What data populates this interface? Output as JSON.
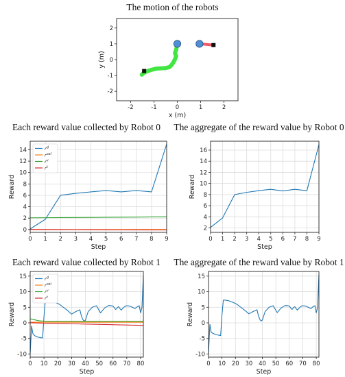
{
  "colors": {
    "r_d": "#1f77b4",
    "r_col": "#ff7f0e",
    "r_v": "#2ca02c",
    "r_t": "#d62728",
    "trail": "#22e022",
    "robot": "#4f8fd6",
    "goal": "#111111",
    "link": "#ee3344"
  },
  "chart_data": [
    {
      "id": "motion",
      "type": "scatter",
      "title": "The motion of the robots",
      "xlabel": "x (m)",
      "ylabel": "y (m)",
      "xlim": [
        -2.6,
        2.6
      ],
      "ylim": [
        -2.6,
        2.6
      ],
      "xticks": [
        -2,
        -1,
        0,
        1,
        2
      ],
      "yticks": [
        -2,
        -1,
        0,
        1,
        2
      ],
      "grid": false,
      "trail": [
        [
          -1.52,
          -0.95
        ],
        [
          -1.42,
          -0.82
        ],
        [
          -1.28,
          -0.73
        ],
        [
          -1.1,
          -0.64
        ],
        [
          -0.9,
          -0.57
        ],
        [
          -0.7,
          -0.55
        ],
        [
          -0.5,
          -0.53
        ],
        [
          -0.35,
          -0.48
        ],
        [
          -0.27,
          -0.38
        ],
        [
          -0.18,
          -0.2
        ],
        [
          -0.1,
          0.02
        ],
        [
          -0.05,
          0.22
        ],
        [
          -0.1,
          0.42
        ],
        [
          -0.05,
          0.62
        ],
        [
          -0.02,
          0.82
        ],
        [
          0.0,
          1.0
        ]
      ],
      "robots": [
        [
          0.0,
          1.0
        ],
        [
          0.95,
          1.0
        ]
      ],
      "goals": [
        [
          -1.42,
          -0.72
        ],
        [
          1.55,
          0.92
        ]
      ],
      "link": [
        [
          0.95,
          1.0
        ],
        [
          1.55,
          0.92
        ]
      ]
    },
    {
      "id": "r0-each",
      "type": "line",
      "title": "Each reward value collected by Robot 0",
      "xlabel": "Step",
      "ylabel": "Reward",
      "xlim": [
        0,
        9
      ],
      "ylim": [
        -0.5,
        15.5
      ],
      "xticks": [
        0,
        1,
        2,
        3,
        4,
        5,
        6,
        7,
        8,
        9
      ],
      "yticks": [
        0,
        2,
        4,
        6,
        8,
        10,
        12,
        14
      ],
      "grid": true,
      "legend": "top-left",
      "x": [
        0,
        1,
        2,
        3,
        4,
        5,
        6,
        7,
        8,
        9
      ],
      "series": [
        {
          "name": "r^d",
          "color": "#1f77b4",
          "values": [
            0.1,
            1.8,
            6.0,
            6.35,
            6.6,
            6.85,
            6.6,
            6.85,
            6.6,
            15.0
          ]
        },
        {
          "name": "r^col",
          "color": "#ff7f0e",
          "values": [
            0,
            0,
            0,
            0,
            0,
            0,
            0,
            0,
            0,
            0
          ]
        },
        {
          "name": "r^v",
          "color": "#2ca02c",
          "values": [
            2.05,
            2.07,
            2.09,
            2.11,
            2.13,
            2.15,
            2.17,
            2.19,
            2.21,
            2.23
          ]
        },
        {
          "name": "r^t",
          "color": "#d62728",
          "values": [
            0.02,
            0.0,
            -0.01,
            -0.02,
            -0.03,
            -0.04,
            -0.05,
            -0.06,
            -0.07,
            -0.08
          ]
        }
      ]
    },
    {
      "id": "r0-agg",
      "type": "line",
      "title": "The aggregate of the reward value by Robot 0",
      "xlabel": "Step",
      "ylabel": "Reward",
      "xlim": [
        0,
        9
      ],
      "ylim": [
        1.2,
        17.6
      ],
      "xticks": [
        0,
        1,
        2,
        3,
        4,
        5,
        6,
        7,
        8,
        9
      ],
      "yticks": [
        2,
        4,
        6,
        8,
        10,
        12,
        14,
        16
      ],
      "grid": true,
      "x": [
        0,
        1,
        2,
        3,
        4,
        5,
        6,
        7,
        8,
        9
      ],
      "series": [
        {
          "name": "",
          "color": "#1f77b4",
          "values": [
            2.1,
            3.8,
            8.0,
            8.4,
            8.7,
            8.95,
            8.65,
            8.95,
            8.7,
            17.0
          ]
        }
      ]
    },
    {
      "id": "r1-each",
      "type": "line",
      "title": "Each reward value collected by Robot 1",
      "xlabel": "Step",
      "ylabel": "Reward",
      "xlim": [
        0,
        82
      ],
      "ylim": [
        -11,
        16.5
      ],
      "xticks": [
        0,
        10,
        20,
        30,
        40,
        50,
        60,
        70,
        80
      ],
      "yticks": [
        -10,
        -5,
        0,
        5,
        10,
        15
      ],
      "grid": true,
      "legend": "top-left",
      "x": [
        0,
        1,
        2,
        3,
        4,
        5,
        6,
        7,
        8,
        9,
        10,
        11,
        12,
        15,
        18,
        21,
        24,
        27,
        30,
        33,
        36,
        37,
        38,
        39,
        40,
        42,
        45,
        48,
        51,
        54,
        57,
        60,
        61,
        62,
        63,
        64,
        65,
        66,
        67,
        68,
        69,
        70,
        72,
        74,
        76,
        78,
        79,
        80,
        81,
        82
      ],
      "series": [
        {
          "name": "r^d",
          "color": "#1f77b4",
          "values": [
            -10,
            -1,
            -3.5,
            -4,
            -4.3,
            -4.5,
            -4.6,
            -4.7,
            -4.8,
            -4.8,
            2,
            7.2,
            7.2,
            7.0,
            6.6,
            6.0,
            5.0,
            4.0,
            2.8,
            3.6,
            4.2,
            2.4,
            1.2,
            0.6,
            0.8,
            3.6,
            5.0,
            5.5,
            3.2,
            4.8,
            5.6,
            5.4,
            4.8,
            4.3,
            4.8,
            5.2,
            4.6,
            4.1,
            4.6,
            5.0,
            5.4,
            5.5,
            5.4,
            5.0,
            4.6,
            5.3,
            5.5,
            3.2,
            5.0,
            15.0
          ]
        },
        {
          "name": "r^col",
          "color": "#ff7f0e",
          "values": [
            0.2,
            0.2,
            0.2,
            0.2,
            0.2,
            0.2,
            0.2,
            0.2,
            0.2,
            0.2,
            0.2,
            0.2,
            0.2,
            0.2,
            0.2,
            0.2,
            0.2,
            0.2,
            0.2,
            0.2,
            0.2,
            0.2,
            0.2,
            0.2,
            0.2,
            0.2,
            0.2,
            0.2,
            0.2,
            0.2,
            0.2,
            0.2,
            0.2,
            0.2,
            0.2,
            0.2,
            0.2,
            0.2,
            0.2,
            0.2,
            0.2,
            0.2,
            0.2,
            0.2,
            0.2,
            0.2,
            0.2,
            0.2,
            0.2,
            0.2
          ]
        },
        {
          "name": "r^v",
          "color": "#2ca02c",
          "values": [
            1.3,
            1.2,
            1.1,
            1.0,
            0.9,
            0.8,
            0.7,
            0.65,
            0.6,
            0.6,
            0.5,
            0.5,
            0.5,
            0.5,
            0.5,
            0.5,
            0.5,
            0.5,
            0.5,
            0.5,
            0.5,
            0.5,
            0.5,
            0.5,
            0.5,
            0.5,
            0.5,
            0.5,
            0.5,
            0.5,
            0.5,
            0.5,
            0.5,
            0.5,
            0.5,
            0.5,
            0.5,
            0.5,
            0.5,
            0.5,
            0.5,
            0.5,
            0.5,
            0.5,
            0.5,
            0.5,
            0.5,
            0.5,
            0.5,
            0.5
          ]
        },
        {
          "name": "r^t",
          "color": "#d62728",
          "values": [
            0.0,
            0.0,
            -0.01,
            -0.02,
            -0.03,
            -0.04,
            -0.05,
            -0.06,
            -0.07,
            -0.08,
            -0.1,
            -0.11,
            -0.12,
            -0.15,
            -0.18,
            -0.21,
            -0.24,
            -0.27,
            -0.3,
            -0.33,
            -0.36,
            -0.37,
            -0.38,
            -0.39,
            -0.4,
            -0.42,
            -0.45,
            -0.48,
            -0.51,
            -0.54,
            -0.57,
            -0.6,
            -0.61,
            -0.62,
            -0.63,
            -0.64,
            -0.65,
            -0.66,
            -0.67,
            -0.68,
            -0.69,
            -0.7,
            -0.72,
            -0.74,
            -0.76,
            -0.78,
            -0.79,
            -0.8,
            -0.81,
            -0.82
          ]
        }
      ]
    },
    {
      "id": "r1-agg",
      "type": "line",
      "title": "The aggregate of the reward value by Robot 1",
      "xlabel": "Step",
      "ylabel": "Reward",
      "xlim": [
        0,
        82
      ],
      "ylim": [
        -11,
        16.5
      ],
      "xticks": [
        0,
        10,
        20,
        30,
        40,
        50,
        60,
        70,
        80
      ],
      "yticks": [
        -10,
        -5,
        0,
        5,
        10,
        15
      ],
      "grid": true,
      "x": [
        0,
        1,
        2,
        3,
        4,
        5,
        6,
        7,
        8,
        9,
        10,
        11,
        12,
        15,
        18,
        21,
        24,
        27,
        30,
        33,
        36,
        37,
        38,
        39,
        40,
        42,
        45,
        48,
        51,
        54,
        57,
        60,
        61,
        62,
        63,
        64,
        65,
        66,
        67,
        68,
        69,
        70,
        72,
        74,
        76,
        78,
        79,
        80,
        81,
        82
      ],
      "series": [
        {
          "name": "",
          "color": "#1f77b4",
          "values": [
            -10,
            -0.5,
            -3.0,
            -3.3,
            -3.5,
            -3.7,
            -3.8,
            -3.9,
            -4.0,
            -4.1,
            2.5,
            7.3,
            7.3,
            7.1,
            6.6,
            6.0,
            5.0,
            4.0,
            2.9,
            3.6,
            4.2,
            2.4,
            1.2,
            0.6,
            0.9,
            3.6,
            5.0,
            5.5,
            3.3,
            4.8,
            5.6,
            5.4,
            4.8,
            4.3,
            4.8,
            5.2,
            4.6,
            4.1,
            4.6,
            5.0,
            5.4,
            5.5,
            5.4,
            5.0,
            4.6,
            5.3,
            5.5,
            3.2,
            5.0,
            15.5
          ]
        }
      ]
    }
  ]
}
